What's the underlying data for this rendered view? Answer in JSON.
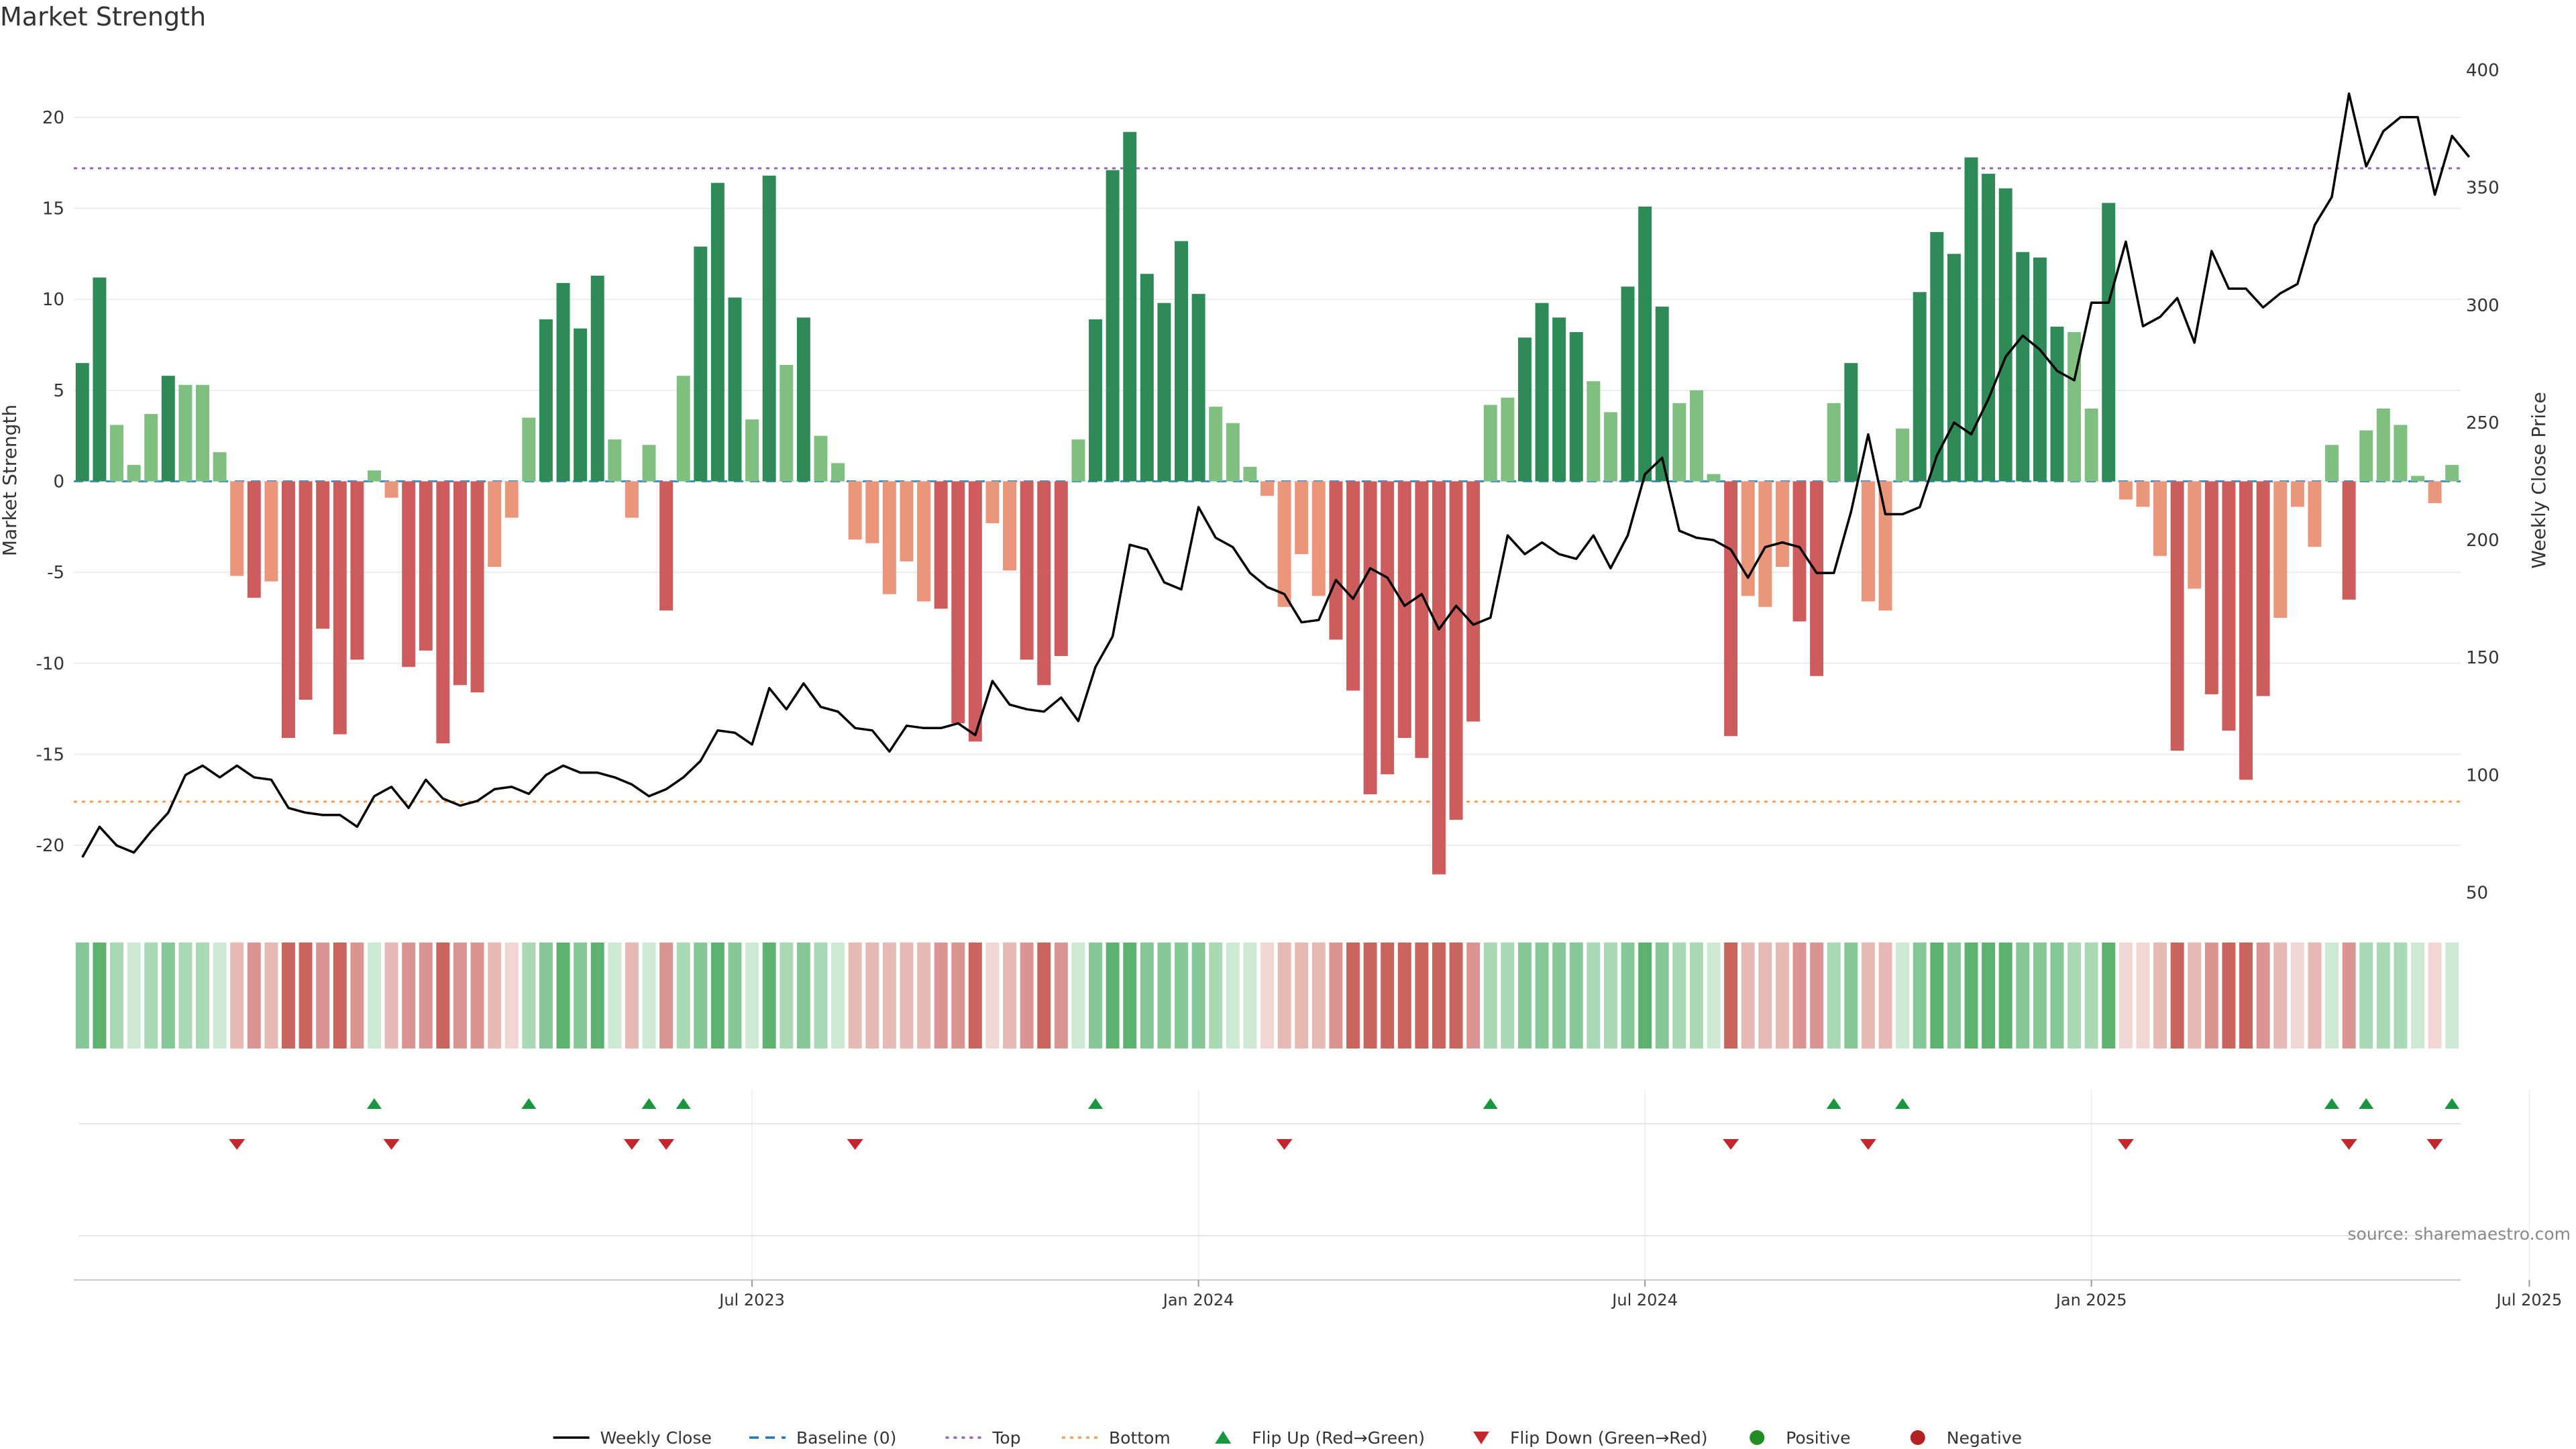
{
  "chart_data": {
    "type": "bar",
    "title": "Market Strength",
    "ylabel_left": "Market Strength",
    "ylabel_right": "Weekly Close Price",
    "ylim_left": [
      -23.5,
      23.5
    ],
    "ylim_right": [
      43,
      407
    ],
    "yticks_left": [
      20,
      15,
      10,
      5,
      0,
      -5,
      -10,
      -15,
      -20
    ],
    "yticks_right": [
      400,
      350,
      300,
      250,
      200,
      150,
      100,
      50
    ],
    "x_ticks": [
      "Jul 2023",
      "Jan 2024",
      "Jul 2024",
      "Jan 2025",
      "Jul 2025"
    ],
    "x_tick_index": [
      39.5,
      65.5,
      91.5,
      117.5,
      143
    ],
    "top_threshold": 17.2,
    "bottom_threshold": -17.6,
    "grid": true,
    "legend_position": "bottom-center",
    "legend": [
      "Weekly Close",
      "Baseline (0)",
      "Top",
      "Bottom",
      "Flip Up (Red→Green)",
      "Flip Down (Green→Red)",
      "Positive",
      "Negative"
    ],
    "source": "source: sharemaestro.com",
    "colors": {
      "strong_green": "#2e8b57",
      "light_green": "#7fbf7f",
      "strong_red": "#cd5c5c",
      "light_red": "#e9967a",
      "price_line": "#000000",
      "top_line": "#9467bd",
      "bottom_line": "#f0a05a",
      "baseline": "#1f77b4",
      "flip_up": "#1a9641",
      "flip_down": "#c0282d",
      "positive_dot": "#228b22",
      "negative_dot": "#b22222"
    },
    "series": [
      {
        "name": "Market Strength",
        "strength": [
          6.5,
          11.2,
          3.1,
          0.9,
          3.7,
          5.8,
          5.3,
          5.3,
          1.6,
          -5.2,
          -6.4,
          -5.5,
          -14.1,
          -12.0,
          -8.1,
          -13.9,
          -9.8,
          0.6,
          -0.9,
          -10.2,
          -9.3,
          -14.4,
          -11.2,
          -11.6,
          -4.7,
          -2.0,
          3.5,
          8.9,
          10.9,
          8.4,
          11.3,
          2.3,
          -2.0,
          2.0,
          -7.1,
          5.8,
          12.9,
          16.4,
          10.1,
          3.4,
          16.8,
          6.4,
          9.0,
          2.5,
          1.0,
          -3.2,
          -3.4,
          -6.2,
          -4.4,
          -6.6,
          -7.0,
          -13.3,
          -14.3,
          -2.3,
          -4.9,
          -9.8,
          -11.2,
          -9.6,
          2.3,
          8.9,
          17.1,
          19.2,
          11.4,
          9.8,
          13.2,
          10.3,
          4.1,
          3.2,
          0.8,
          -0.8,
          -6.9,
          -4.0,
          -6.3,
          -8.7,
          -11.5,
          -17.2,
          -16.1,
          -14.1,
          -15.2,
          -21.6,
          -18.6,
          -13.2,
          4.2,
          4.6,
          7.9,
          9.8,
          9.0,
          8.2,
          5.5,
          3.8,
          10.7,
          15.1,
          9.6,
          4.3,
          5.0,
          0.4,
          -14.0,
          -6.3,
          -6.9,
          -4.7,
          -7.7,
          -10.7,
          4.3,
          6.5,
          -6.6,
          -7.1,
          2.9,
          10.4,
          13.7,
          12.5,
          17.8,
          16.9,
          16.1,
          12.6,
          12.3,
          8.5,
          8.2,
          4.0,
          15.3,
          -1.0,
          -1.4,
          -4.1,
          -14.8,
          -5.9,
          -11.7,
          -13.7,
          -16.4,
          -11.8,
          -7.5,
          -1.4,
          -3.6,
          2.0,
          -6.5,
          2.8,
          4.0,
          3.1,
          0.3,
          -1.2,
          0.9
        ],
        "intensity": [
          "medium",
          "strong",
          "light",
          "vlight",
          "light",
          "medium",
          "light",
          "light",
          "vlight",
          "light",
          "medium",
          "light",
          "strong",
          "strong",
          "medium",
          "strong",
          "medium",
          "vlight",
          "light",
          "medium",
          "medium",
          "strong",
          "medium",
          "medium",
          "light",
          "vlight",
          "light",
          "medium",
          "strong",
          "medium",
          "strong",
          "vlight",
          "light",
          "vlight",
          "medium",
          "light",
          "medium",
          "strong",
          "medium",
          "vlight",
          "strong",
          "light",
          "medium",
          "light",
          "vlight",
          "light",
          "light",
          "light",
          "light",
          "light",
          "medium",
          "medium",
          "strong",
          "vlight",
          "light",
          "medium",
          "strong",
          "medium",
          "vlight",
          "medium",
          "strong",
          "strong",
          "medium",
          "medium",
          "medium",
          "medium",
          "light",
          "vlight",
          "vlight",
          "vlight",
          "light",
          "light",
          "light",
          "medium",
          "strong",
          "strong",
          "strong",
          "strong",
          "strong",
          "strong",
          "strong",
          "medium",
          "light",
          "light",
          "medium",
          "medium",
          "medium",
          "medium",
          "light",
          "light",
          "medium",
          "strong",
          "medium",
          "light",
          "light",
          "vlight",
          "strong",
          "light",
          "light",
          "light",
          "medium",
          "medium",
          "light",
          "medium",
          "light",
          "light",
          "vlight",
          "medium",
          "strong",
          "medium",
          "strong",
          "strong",
          "strong",
          "medium",
          "medium",
          "medium",
          "light",
          "light",
          "strong",
          "vlight",
          "vlight",
          "light",
          "strong",
          "light",
          "medium",
          "strong",
          "strong",
          "medium",
          "light",
          "vlight",
          "light",
          "vlight",
          "medium",
          "light",
          "light",
          "light",
          "vlight",
          "vlight",
          "vlight"
        ]
      },
      {
        "name": "Weekly Close",
        "values": [
          65,
          78,
          70,
          67,
          76,
          84,
          100,
          104,
          99,
          104,
          99,
          98,
          86,
          84,
          83,
          83,
          78,
          91,
          95,
          86,
          98,
          90,
          87,
          89,
          94,
          95,
          92,
          100,
          104,
          101,
          101,
          99,
          96,
          91,
          94,
          99,
          106,
          119,
          118,
          113,
          137,
          128,
          139,
          129,
          127,
          120,
          119,
          110,
          121,
          120,
          120,
          122,
          117,
          140,
          130,
          128,
          127,
          133,
          123,
          146,
          159,
          198,
          196,
          182,
          179,
          214,
          201,
          197,
          186,
          180,
          177,
          165,
          166,
          183,
          175,
          188,
          184,
          172,
          177,
          162,
          172,
          164,
          167,
          202,
          194,
          199,
          194,
          192,
          202,
          188,
          202,
          228,
          235,
          204,
          201,
          200,
          196,
          184,
          197,
          199,
          197,
          186,
          186,
          212,
          245,
          211,
          211,
          214,
          236,
          250,
          245,
          260,
          278,
          287,
          281,
          272,
          268,
          301,
          301,
          327,
          291,
          295,
          303,
          284,
          323,
          307,
          307,
          299,
          305,
          309,
          334,
          346,
          390,
          359,
          374,
          380,
          380,
          347,
          372,
          363
        ]
      }
    ],
    "flip_up_index": [
      17,
      26,
      33,
      35,
      59,
      82,
      102,
      106,
      131,
      133,
      138
    ],
    "flip_down_index": [
      9,
      18,
      32,
      34,
      45,
      70,
      96,
      104,
      119,
      132,
      137
    ]
  }
}
